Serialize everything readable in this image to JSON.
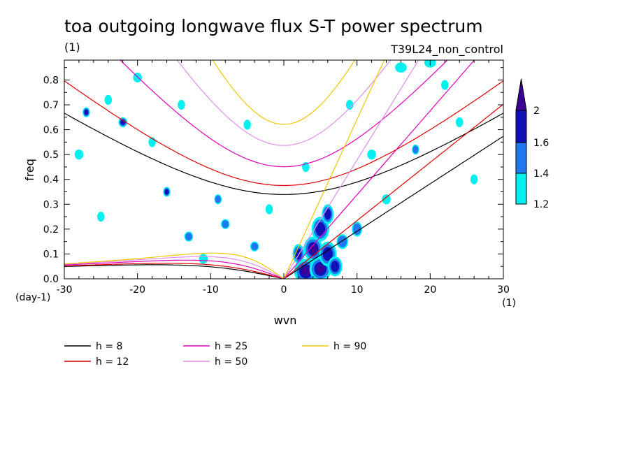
{
  "title": "toa outgoing longwave flux S-T power spectrum",
  "units_label": "(1)",
  "run_label": "T39L24_non_control",
  "chart_data": {
    "type": "heatmap",
    "title": "toa outgoing longwave flux S-T power spectrum",
    "xlabel": "wvn",
    "ylabel": "freq",
    "x_unit": "(1)",
    "y_unit": "(day-1)",
    "xlim": [
      -30,
      30
    ],
    "ylim": [
      0,
      0.88
    ],
    "x_ticks": [
      -30,
      -20,
      -10,
      0,
      10,
      20,
      30
    ],
    "x_tick_labels": [
      "-30",
      "-20",
      "-10",
      "0",
      "10",
      "20",
      "30"
    ],
    "y_ticks": [
      0,
      0.1,
      0.2,
      0.3,
      0.4,
      0.5,
      0.6,
      0.7,
      0.8
    ],
    "y_tick_labels": [
      "0.0",
      "0.1",
      "0.2",
      "0.3",
      "0.4",
      "0.5",
      "0.6",
      "0.7",
      "0.8"
    ],
    "colorbar": {
      "levels": [
        1.2,
        1.4,
        1.6,
        2
      ],
      "labels": [
        "1.2",
        "1.4",
        "1.6",
        "2"
      ],
      "colors": [
        "#00f0f0",
        "#1e78f0",
        "#1010b4",
        "#3c0096"
      ]
    },
    "dispersion_curves": [
      {
        "name": "h =  8",
        "h": 8,
        "color": "#000000"
      },
      {
        "name": "h = 12",
        "h": 12,
        "color": "#e00000"
      },
      {
        "name": "h = 25",
        "h": 25,
        "color": "#e000b8"
      },
      {
        "name": "h = 50",
        "h": 50,
        "color": "#e090e8"
      },
      {
        "name": "h = 90",
        "h": 90,
        "color": "#f0c800"
      }
    ],
    "blobs": [
      [
        3,
        0.03,
        1.6,
        0.05,
        4
      ],
      [
        5,
        0.04,
        1.5,
        0.05,
        4
      ],
      [
        4,
        0.12,
        1.3,
        0.05,
        4
      ],
      [
        6,
        0.1,
        1.2,
        0.05,
        3
      ],
      [
        5,
        0.2,
        1.2,
        0.05,
        3
      ],
      [
        6,
        0.26,
        0.8,
        0.04,
        3
      ],
      [
        2,
        0.1,
        0.8,
        0.04,
        3
      ],
      [
        8,
        0.15,
        0.8,
        0.03,
        2
      ],
      [
        7,
        0.05,
        1.0,
        0.04,
        3
      ],
      [
        10,
        0.2,
        0.7,
        0.03,
        2
      ],
      [
        12,
        0.5,
        0.6,
        0.02,
        1
      ],
      [
        14,
        0.32,
        0.6,
        0.02,
        1
      ],
      [
        18,
        0.52,
        0.5,
        0.02,
        2
      ],
      [
        24,
        0.63,
        0.5,
        0.02,
        1
      ],
      [
        22,
        0.78,
        0.5,
        0.02,
        1
      ],
      [
        -27,
        0.67,
        0.5,
        0.02,
        3
      ],
      [
        -22,
        0.63,
        0.6,
        0.02,
        3
      ],
      [
        -16,
        0.35,
        0.5,
        0.02,
        3
      ],
      [
        -9,
        0.32,
        0.5,
        0.02,
        2
      ],
      [
        -13,
        0.17,
        0.6,
        0.02,
        2
      ],
      [
        -8,
        0.22,
        0.6,
        0.02,
        2
      ],
      [
        -4,
        0.13,
        0.6,
        0.02,
        2
      ],
      [
        -24,
        0.72,
        0.5,
        0.02,
        1
      ],
      [
        -28,
        0.5,
        0.6,
        0.02,
        1
      ],
      [
        -20,
        0.81,
        0.6,
        0.02,
        1
      ],
      [
        -5,
        0.62,
        0.5,
        0.02,
        1
      ],
      [
        3,
        0.45,
        0.5,
        0.02,
        1
      ],
      [
        16,
        0.85,
        0.8,
        0.02,
        1
      ],
      [
        20,
        0.87,
        0.8,
        0.02,
        1
      ],
      [
        -18,
        0.55,
        0.5,
        0.02,
        1
      ],
      [
        -2,
        0.28,
        0.5,
        0.02,
        1
      ],
      [
        -11,
        0.08,
        0.6,
        0.02,
        1
      ],
      [
        9,
        0.7,
        0.5,
        0.02,
        1
      ],
      [
        -25,
        0.25,
        0.5,
        0.02,
        1
      ],
      [
        26,
        0.4,
        0.5,
        0.02,
        1
      ],
      [
        -14,
        0.7,
        0.5,
        0.02,
        1
      ]
    ]
  },
  "legend": [
    {
      "label": "h =  8",
      "color": "#000000"
    },
    {
      "label": "h = 12",
      "color": "#e00000"
    },
    {
      "label": "h = 25",
      "color": "#e000b8"
    },
    {
      "label": "h = 50",
      "color": "#e090e8"
    },
    {
      "label": "h = 90",
      "color": "#f0c800"
    }
  ]
}
